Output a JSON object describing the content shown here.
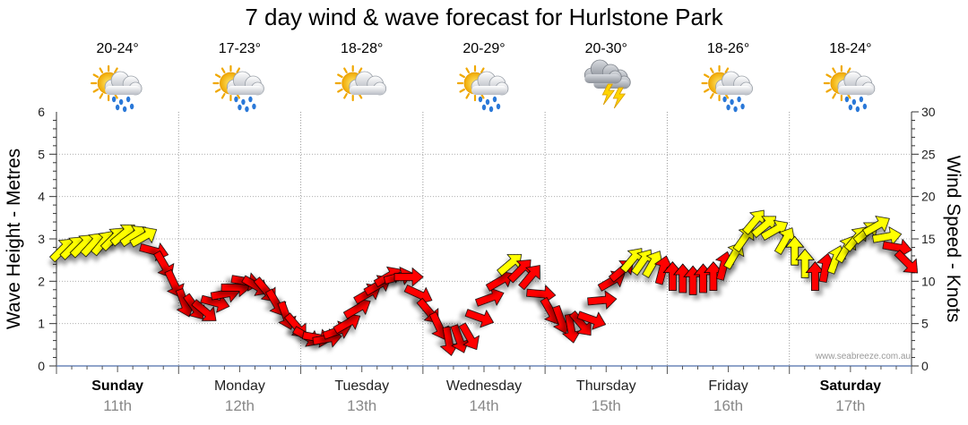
{
  "chart_data": {
    "type": "line",
    "title": "7 day wind & wave forecast for Hurlstone Park",
    "ylabel_left": "Wave Height - Metres",
    "ylabel_right": "Wind Speed - Knots",
    "ylim_left": [
      0,
      6
    ],
    "ylim_right": [
      0,
      30
    ],
    "yticks_left": [
      "0",
      "1",
      "2",
      "3",
      "4",
      "5",
      "6"
    ],
    "yticks_right": [
      "0",
      "5",
      "10",
      "15",
      "20",
      "25",
      "30"
    ],
    "credit": "www.seabreeze.com.au",
    "days": [
      {
        "name": "Sunday",
        "date": "11th",
        "bold": true,
        "temp": "20-24°",
        "icon": "sun-cloud-rain-icon"
      },
      {
        "name": "Monday",
        "date": "12th",
        "bold": false,
        "temp": "17-23°",
        "icon": "sun-cloud-rain-icon"
      },
      {
        "name": "Tuesday",
        "date": "13th",
        "bold": false,
        "temp": "18-28°",
        "icon": "sun-cloud-icon"
      },
      {
        "name": "Wednesday",
        "date": "14th",
        "bold": false,
        "temp": "20-29°",
        "icon": "sun-cloud-rain-icon"
      },
      {
        "name": "Thursday",
        "date": "15th",
        "bold": false,
        "temp": "20-30°",
        "icon": "storm-icon"
      },
      {
        "name": "Friday",
        "date": "16th",
        "bold": false,
        "temp": "18-26°",
        "icon": "sun-cloud-rain-icon"
      },
      {
        "name": "Saturday",
        "date": "17th",
        "bold": true,
        "temp": "18-24°",
        "icon": "sun-cloud-rain-icon"
      }
    ],
    "series": [
      {
        "name": "Wind Speed",
        "x_hours": [
          0,
          4,
          8,
          12,
          16,
          20,
          24,
          28,
          32,
          36,
          40,
          44,
          48,
          52,
          56,
          60,
          64,
          68,
          72,
          76,
          80,
          84,
          88,
          92,
          96,
          100,
          104,
          108,
          112,
          116,
          120,
          124,
          128,
          132,
          136,
          140,
          144,
          148,
          152,
          156,
          160,
          164,
          168
        ],
        "values": [
          13.7,
          14.2,
          14.5,
          15.5,
          15.2,
          12.0,
          7.5,
          6.5,
          8.5,
          10.0,
          9.0,
          6.0,
          3.5,
          3.2,
          5.0,
          8.5,
          10.5,
          10.5,
          6.5,
          3.0,
          3.5,
          8.0,
          12.0,
          10.5,
          6.5,
          4.5,
          5.5,
          10.0,
          12.5,
          12.0,
          10.5,
          10.0,
          10.5,
          13.0,
          17.0,
          16.0,
          13.5,
          10.5,
          12.5,
          15.0,
          16.5,
          14.0,
          10.5
        ],
        "directions_deg": [
          45,
          45,
          40,
          50,
          60,
          150,
          160,
          130,
          80,
          100,
          140,
          160,
          120,
          80,
          60,
          60,
          60,
          90,
          140,
          170,
          150,
          70,
          50,
          40,
          150,
          170,
          110,
          60,
          40,
          30,
          0,
          0,
          0,
          30,
          40,
          60,
          0,
          0,
          20,
          40,
          60,
          100,
          170
        ],
        "colors": {
          "light": "#ffff00",
          "strong": "#ff0000"
        }
      }
    ]
  }
}
